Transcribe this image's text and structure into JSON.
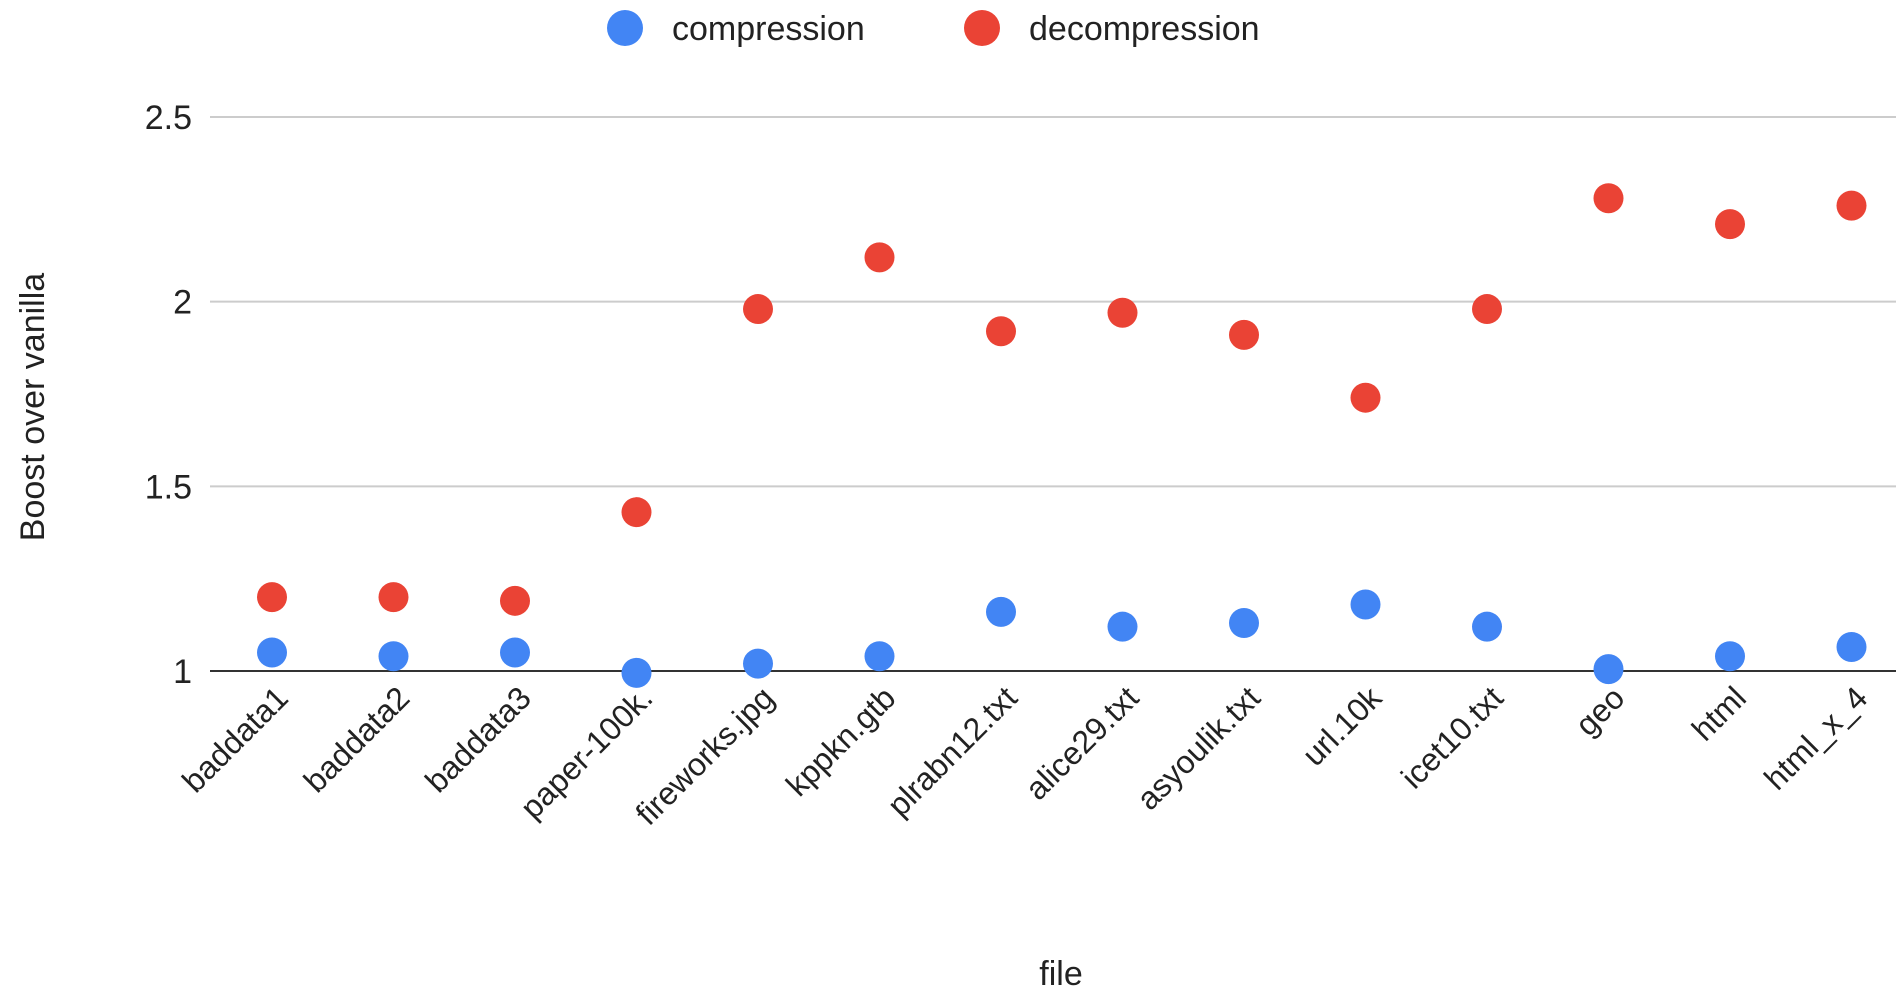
{
  "chart_data": {
    "type": "scatter",
    "title": "",
    "xlabel": "file",
    "ylabel": "Boost over vanilla",
    "categories": [
      "baddata1",
      "baddata2",
      "baddata3",
      "paper-100k.",
      "fireworks.jpg",
      "kppkn.gtb",
      "plrabn12.txt",
      "alice29.txt",
      "asyoulik.txt",
      "url.10k",
      "icet10.txt",
      "geo",
      "html",
      "html_x_4"
    ],
    "series": [
      {
        "name": "compression",
        "color": "#4285f4",
        "values": [
          1.05,
          1.04,
          1.05,
          0.995,
          1.02,
          1.04,
          1.16,
          1.12,
          1.13,
          1.18,
          1.12,
          1.005,
          1.04,
          1.065
        ]
      },
      {
        "name": "decompression",
        "color": "#ea4335",
        "values": [
          1.2,
          1.2,
          1.19,
          1.43,
          1.98,
          2.12,
          1.92,
          1.97,
          1.91,
          1.74,
          1.98,
          2.28,
          2.21,
          2.26
        ]
      }
    ],
    "ylim": [
      1,
      2.5
    ],
    "yticks": [
      "1",
      "1.5",
      "2",
      "2.5"
    ],
    "ytick_values": [
      1,
      1.5,
      2,
      2.5
    ],
    "grid": true,
    "legend_position": "top-center"
  }
}
